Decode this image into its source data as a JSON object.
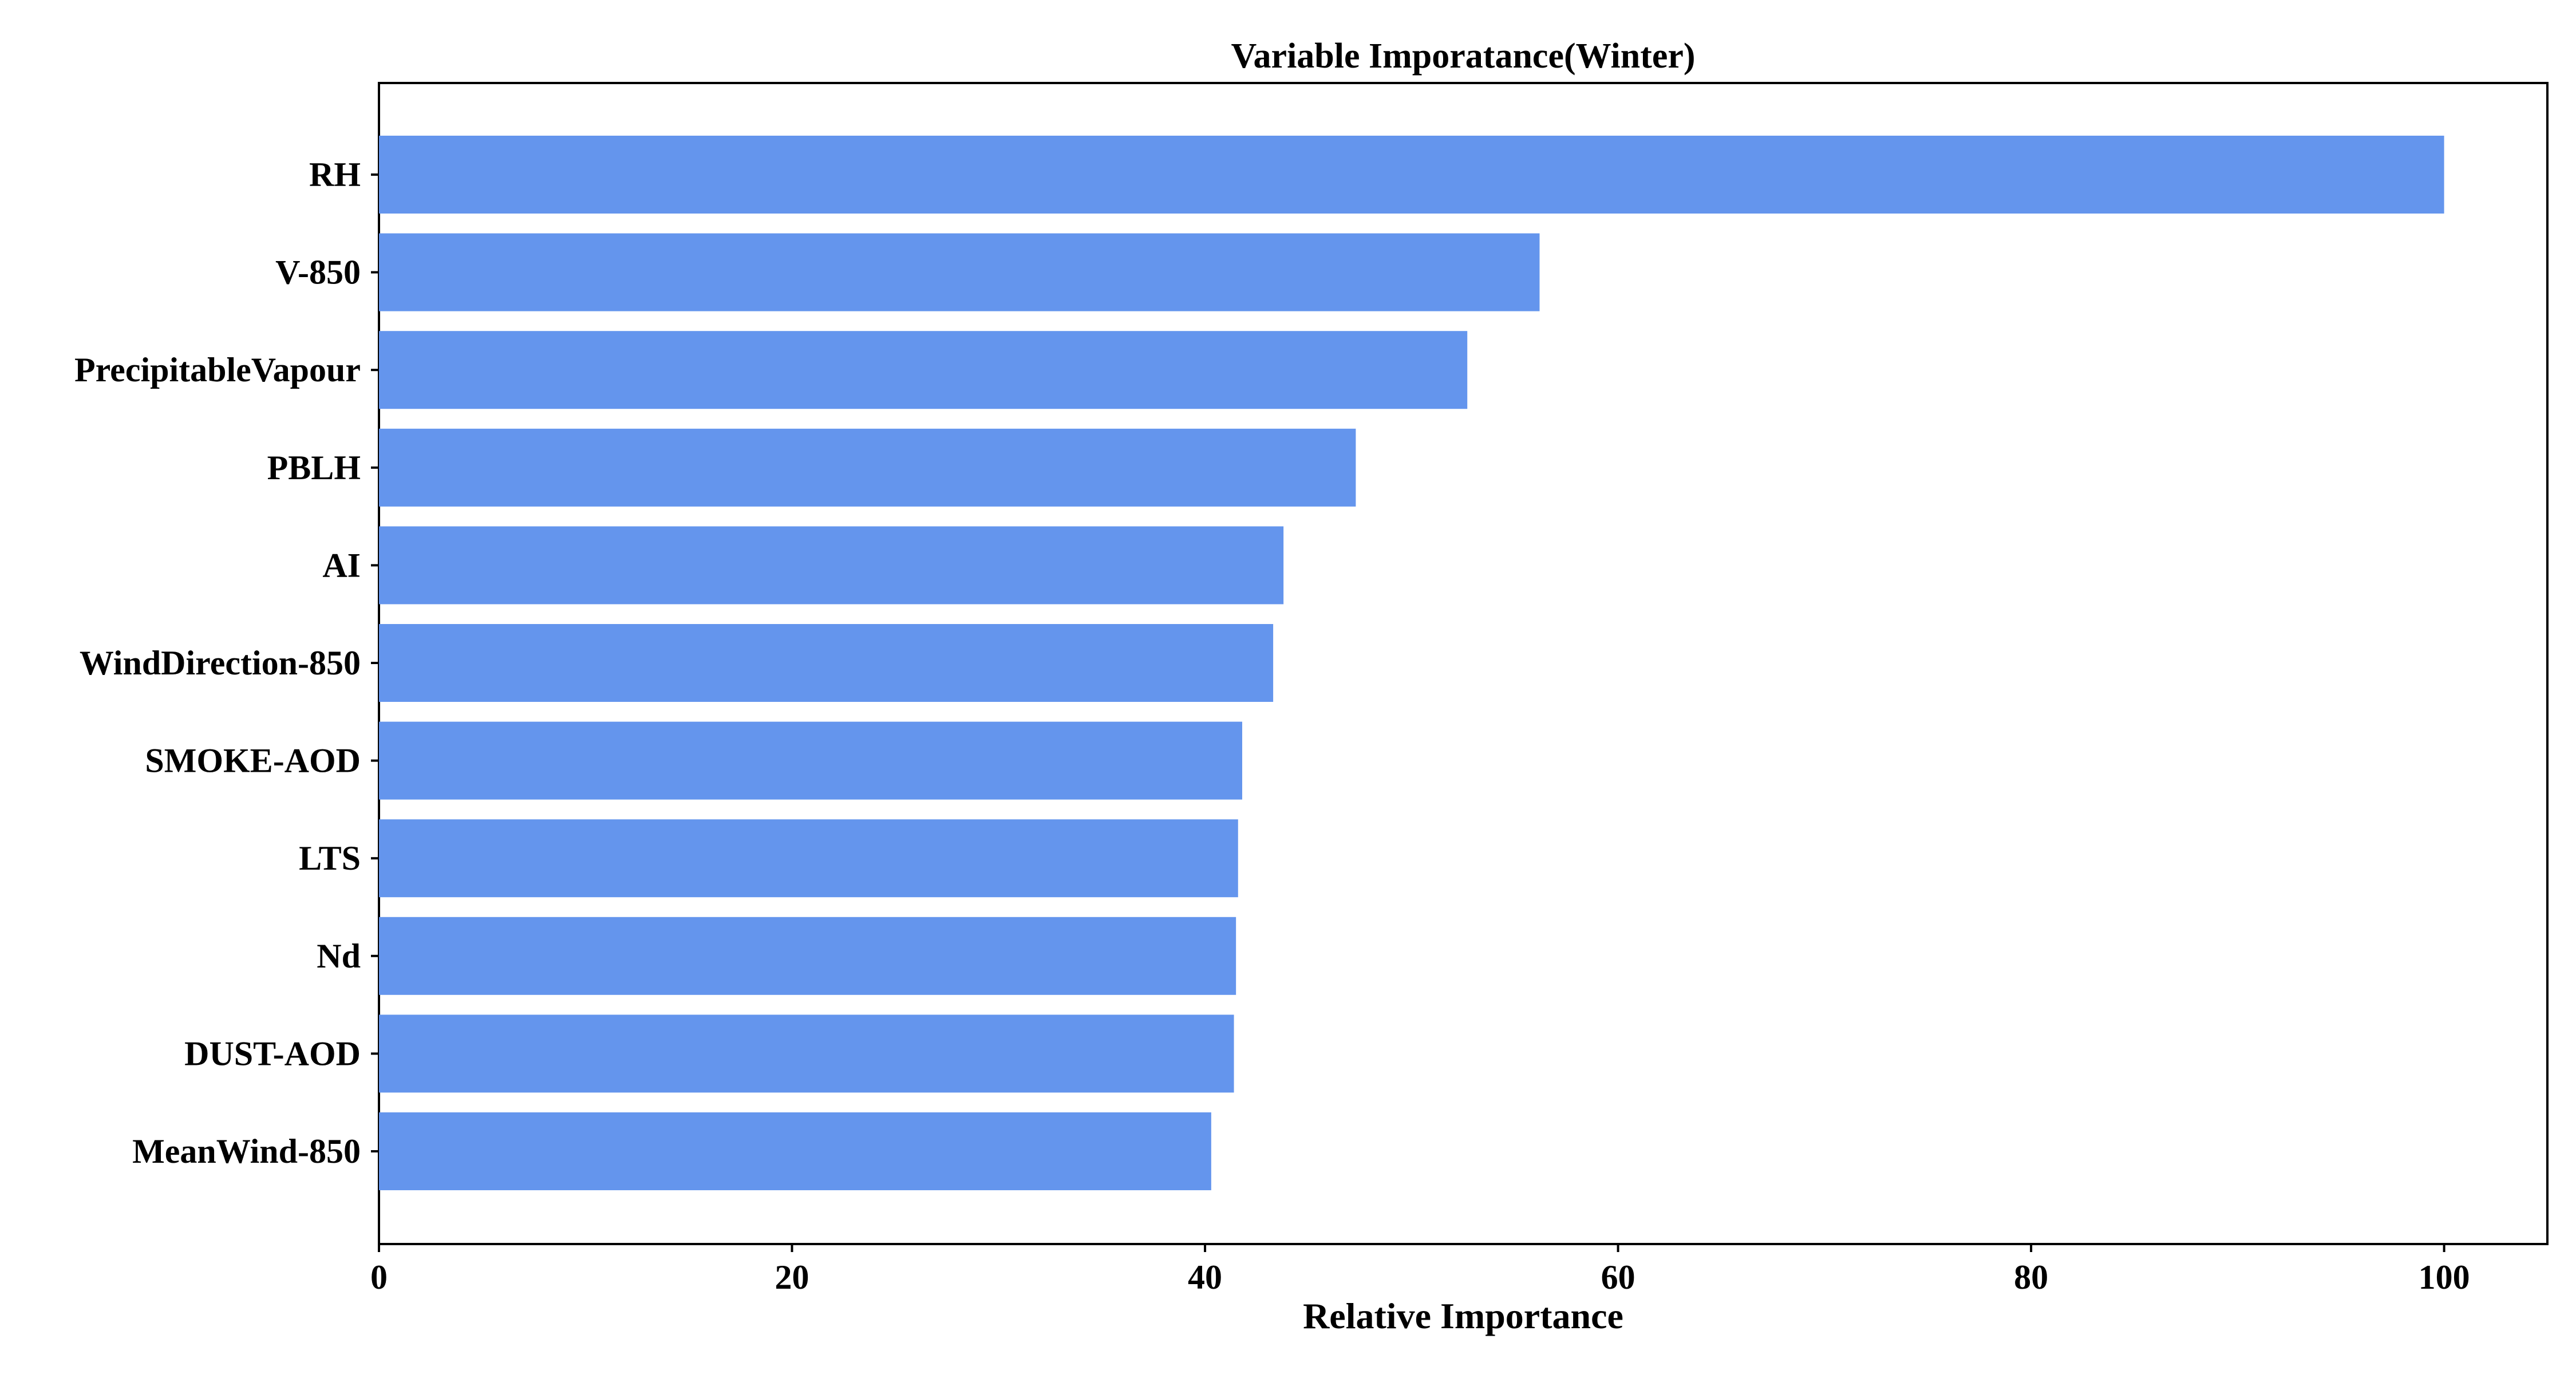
{
  "chart_data": {
    "type": "bar",
    "orientation": "horizontal",
    "title": "Variable Imporatance(Winter)",
    "xlabel": "Relative Importance",
    "ylabel": "",
    "xlim": [
      0,
      105
    ],
    "xticks": [
      0,
      20,
      40,
      60,
      80,
      100
    ],
    "categories": [
      "RH",
      "V-850",
      "PrecipitableVapour",
      "PBLH",
      "AI",
      "WindDirection-850",
      "SMOKE-AOD",
      "LTS",
      "Nd",
      "DUST-AOD",
      "MeanWind-850"
    ],
    "values": [
      100,
      56.2,
      52.7,
      47.3,
      43.8,
      43.3,
      41.8,
      41.6,
      41.5,
      41.4,
      40.3
    ],
    "bar_color": "#6495ED",
    "grid": false,
    "legend": "none"
  }
}
